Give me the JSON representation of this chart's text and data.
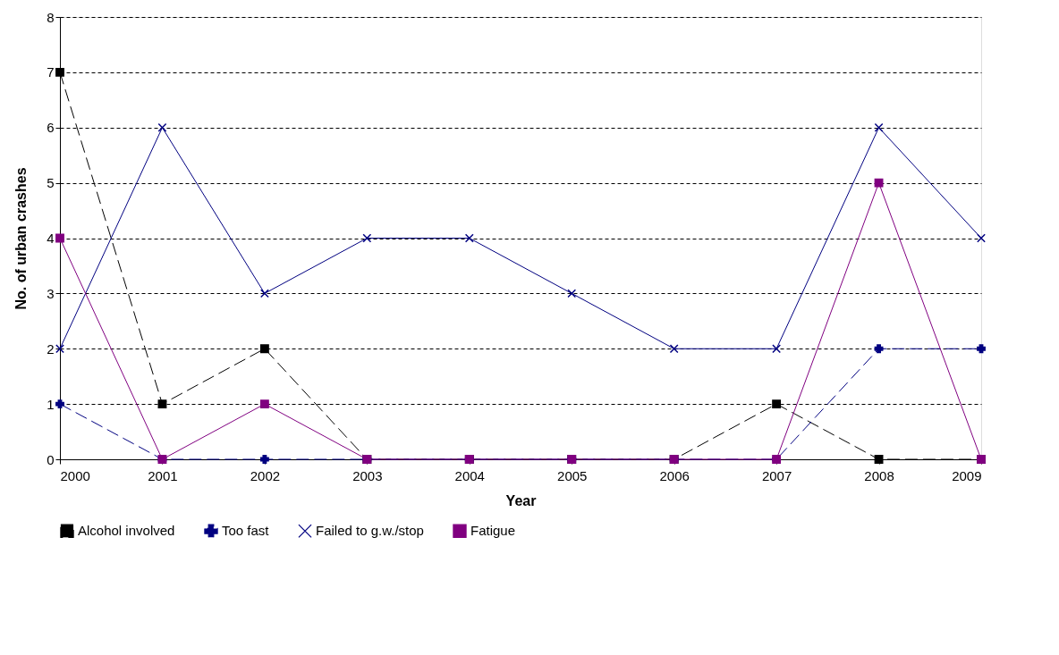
{
  "chart_data": {
    "type": "line",
    "xlabel": "Year",
    "ylabel": "No. of urban crashes",
    "x": [
      2000,
      2001,
      2002,
      2003,
      2004,
      2005,
      2006,
      2007,
      2008,
      2009
    ],
    "xlim": [
      2000,
      2009
    ],
    "xticks": [
      2000,
      2001,
      2002,
      2003,
      2004,
      2005,
      2006,
      2007,
      2008,
      2009
    ],
    "ylim": [
      0,
      8
    ],
    "yticks": [
      0,
      1,
      2,
      3,
      4,
      5,
      6,
      7,
      8
    ],
    "grid": "y",
    "legend": "bottom",
    "series": [
      {
        "name": "Alcohol involved",
        "color": "#000000",
        "marker": "square",
        "line_style": "dashed",
        "values": [
          7,
          1,
          2,
          0,
          0,
          0,
          0,
          1,
          0,
          0
        ]
      },
      {
        "name": "Too fast",
        "color": "#000080",
        "marker": "cross",
        "line_style": "dashed",
        "values": [
          1,
          0,
          0,
          0,
          0,
          0,
          0,
          0,
          2,
          2
        ]
      },
      {
        "name": "Failed to g.w./stop",
        "color": "#000080",
        "marker": "x",
        "line_style": "solid",
        "values": [
          2,
          6,
          3,
          4,
          4,
          3,
          2,
          2,
          6,
          4
        ]
      },
      {
        "name": "Fatigue",
        "color": "#800080",
        "marker": "square",
        "line_style": "solid",
        "values": [
          4,
          0,
          1,
          0,
          0,
          0,
          0,
          0,
          5,
          0
        ]
      }
    ]
  }
}
